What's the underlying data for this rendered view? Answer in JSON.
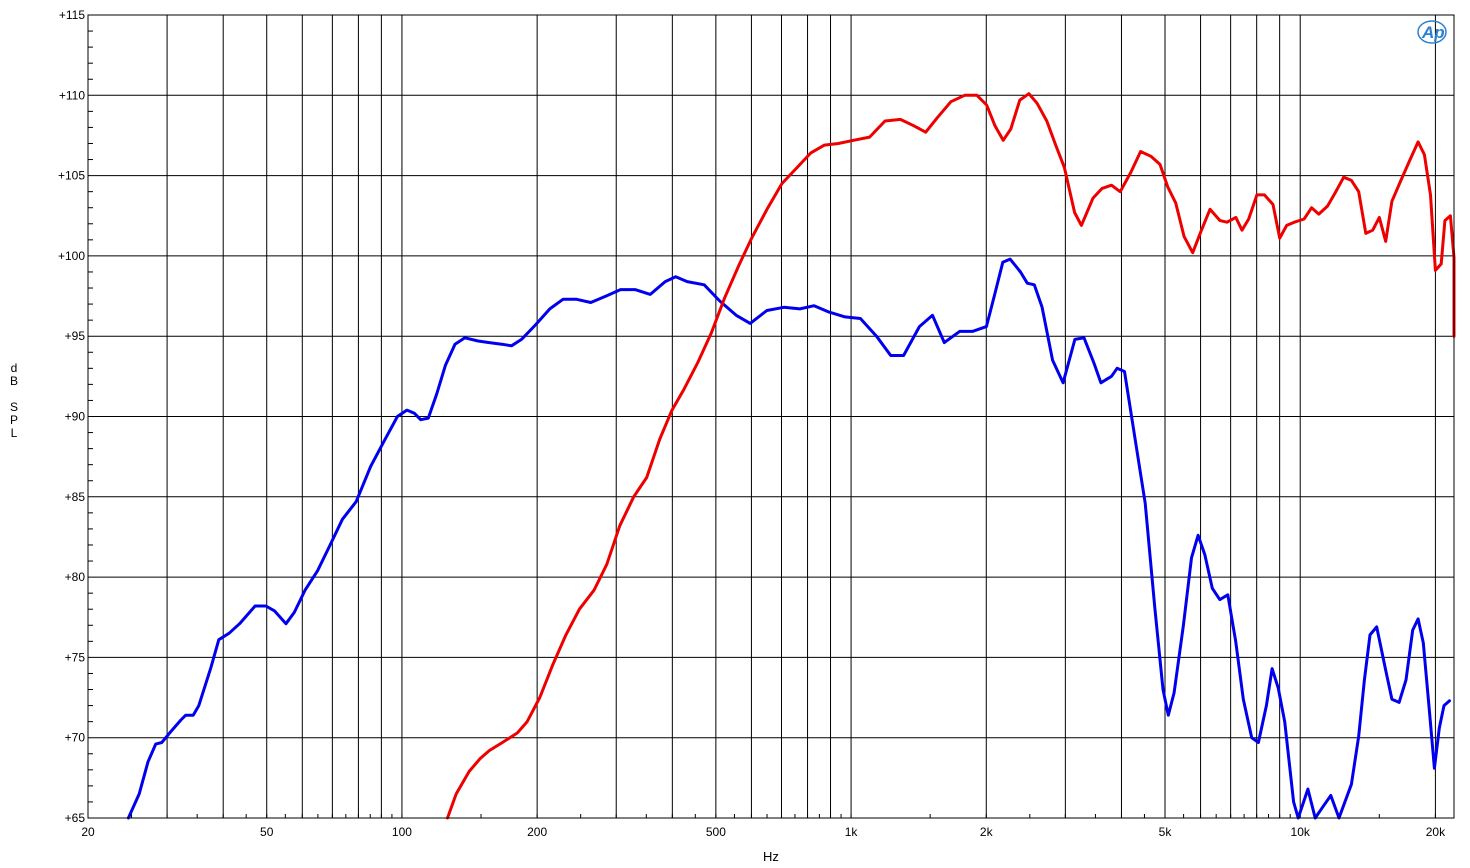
{
  "chart_data": {
    "type": "line",
    "xlabel": "Hz",
    "ylabel": "dB SPL",
    "x_scale": "log",
    "xlim": [
      20,
      22000
    ],
    "ylim": [
      65,
      115
    ],
    "grid": true,
    "logo": "Ap",
    "x_ticks": [
      {
        "value": 20,
        "label": "20"
      },
      {
        "value": 50,
        "label": "50"
      },
      {
        "value": 100,
        "label": "100"
      },
      {
        "value": 200,
        "label": "200"
      },
      {
        "value": 500,
        "label": "500"
      },
      {
        "value": 1000,
        "label": "1k"
      },
      {
        "value": 2000,
        "label": "2k"
      },
      {
        "value": 5000,
        "label": "5k"
      },
      {
        "value": 10000,
        "label": "10k"
      },
      {
        "value": 20000,
        "label": "20k"
      }
    ],
    "y_ticks": [
      {
        "value": 115,
        "label": "+115"
      },
      {
        "value": 110,
        "label": "+110"
      },
      {
        "value": 105,
        "label": "+105"
      },
      {
        "value": 100,
        "label": "+100"
      },
      {
        "value": 95,
        "label": "+95"
      },
      {
        "value": 90,
        "label": "+90"
      },
      {
        "value": 85,
        "label": "+85"
      },
      {
        "value": 80,
        "label": "+80"
      },
      {
        "value": 75,
        "label": "+75"
      },
      {
        "value": 70,
        "label": "+70"
      },
      {
        "value": 65,
        "label": "+65"
      }
    ],
    "series": [
      {
        "color": "#0000ee",
        "points": [
          [
            24.6,
            65.0
          ],
          [
            26.0,
            66.5
          ],
          [
            27.2,
            68.5
          ],
          [
            28.3,
            69.6
          ],
          [
            29.2,
            69.7
          ],
          [
            30.4,
            70.3
          ],
          [
            32.2,
            71.1
          ],
          [
            33.0,
            71.4
          ],
          [
            34.3,
            71.4
          ],
          [
            35.3,
            72.0
          ],
          [
            37.5,
            74.3
          ],
          [
            39.1,
            76.1
          ],
          [
            41.2,
            76.5
          ],
          [
            43.5,
            77.1
          ],
          [
            47.1,
            78.2
          ],
          [
            49.8,
            78.2
          ],
          [
            52.0,
            77.9
          ],
          [
            55.2,
            77.1
          ],
          [
            57.6,
            77.8
          ],
          [
            60.9,
            79.2
          ],
          [
            64.9,
            80.4
          ],
          [
            69.2,
            82.0
          ],
          [
            73.7,
            83.6
          ],
          [
            79.1,
            84.7
          ],
          [
            85.2,
            86.9
          ],
          [
            91.4,
            88.5
          ],
          [
            97.7,
            90.0
          ],
          [
            102.6,
            90.4
          ],
          [
            106.6,
            90.2
          ],
          [
            110.1,
            89.8
          ],
          [
            114.5,
            89.9
          ],
          [
            119.5,
            91.4
          ],
          [
            125.0,
            93.2
          ],
          [
            131.3,
            94.5
          ],
          [
            138.1,
            94.9
          ],
          [
            147.8,
            94.7
          ],
          [
            156.5,
            94.6
          ],
          [
            166.8,
            94.5
          ],
          [
            175.4,
            94.4
          ],
          [
            184.6,
            94.8
          ],
          [
            198.2,
            95.7
          ],
          [
            213.4,
            96.7
          ],
          [
            228.4,
            97.3
          ],
          [
            244.9,
            97.3
          ],
          [
            263.3,
            97.1
          ],
          [
            284.9,
            97.5
          ],
          [
            306.6,
            97.9
          ],
          [
            330.5,
            97.9
          ],
          [
            357.3,
            97.6
          ],
          [
            385.7,
            98.4
          ],
          [
            406.9,
            98.7
          ],
          [
            431.7,
            98.4
          ],
          [
            470.9,
            98.2
          ],
          [
            509.6,
            97.2
          ],
          [
            555.0,
            96.3
          ],
          [
            596.1,
            95.8
          ],
          [
            649.5,
            96.6
          ],
          [
            708.7,
            96.8
          ],
          [
            769.2,
            96.7
          ],
          [
            827.2,
            96.9
          ],
          [
            893.5,
            96.5
          ],
          [
            969.5,
            96.2
          ],
          [
            1048.8,
            96.1
          ],
          [
            1139.3,
            95.0
          ],
          [
            1225.2,
            93.8
          ],
          [
            1309.3,
            93.8
          ],
          [
            1419.6,
            95.6
          ],
          [
            1518.5,
            96.3
          ],
          [
            1612.9,
            94.6
          ],
          [
            1744.7,
            95.3
          ],
          [
            1862.9,
            95.3
          ],
          [
            2001.0,
            95.6
          ],
          [
            2084.0,
            97.5
          ],
          [
            2176.7,
            99.6
          ],
          [
            2259.7,
            99.8
          ],
          [
            2383.9,
            99.0
          ],
          [
            2468.5,
            98.3
          ],
          [
            2559.0,
            98.2
          ],
          [
            2662.8,
            96.8
          ],
          [
            2810.3,
            93.5
          ],
          [
            2965.0,
            92.1
          ],
          [
            3150.0,
            94.8
          ],
          [
            3300.0,
            94.9
          ],
          [
            3476.0,
            93.3
          ],
          [
            3600.0,
            92.1
          ],
          [
            3801.0,
            92.5
          ],
          [
            3912.0,
            93.0
          ],
          [
            4062.0,
            92.8
          ],
          [
            4300.0,
            88.4
          ],
          [
            4518.0,
            84.6
          ],
          [
            4745.0,
            78.1
          ],
          [
            4949.0,
            73.0
          ],
          [
            5085.0,
            71.4
          ],
          [
            5240.0,
            72.8
          ],
          [
            5495.0,
            77.0
          ],
          [
            5727.0,
            81.2
          ],
          [
            5926.0,
            82.6
          ],
          [
            6133.0,
            81.4
          ],
          [
            6372.0,
            79.3
          ],
          [
            6621.0,
            78.6
          ],
          [
            6899.0,
            78.9
          ],
          [
            7184.0,
            76.0
          ],
          [
            7468.0,
            72.4
          ],
          [
            7798.0,
            70.0
          ],
          [
            8070.0,
            69.7
          ],
          [
            8409.0,
            72.0
          ],
          [
            8659.0,
            74.3
          ],
          [
            8935.0,
            73.1
          ],
          [
            9238.0,
            71.0
          ],
          [
            9665.0,
            66.0
          ],
          [
            9900.0,
            65.0
          ],
          [
            10400.0,
            66.8
          ],
          [
            10800.0,
            65.0
          ],
          [
            11300.0,
            65.8
          ],
          [
            11700.0,
            66.4
          ],
          [
            12200.0,
            65.0
          ],
          [
            13000.0,
            67.1
          ],
          [
            13500.0,
            70.1
          ],
          [
            13900.0,
            73.6
          ],
          [
            14300.0,
            76.4
          ],
          [
            14800.0,
            76.9
          ],
          [
            15500.0,
            74.2
          ],
          [
            16000.0,
            72.4
          ],
          [
            16600.0,
            72.2
          ],
          [
            17200.0,
            73.6
          ],
          [
            17800.0,
            76.7
          ],
          [
            18300.0,
            77.4
          ],
          [
            18800.0,
            75.9
          ],
          [
            19400.0,
            71.6
          ],
          [
            19900.0,
            68.1
          ],
          [
            20400.0,
            70.6
          ],
          [
            20900.0,
            72.0
          ],
          [
            21500.0,
            72.3
          ]
        ]
      },
      {
        "color": "#ee0000",
        "points": [
          [
            126.3,
            65.0
          ],
          [
            132.1,
            66.5
          ],
          [
            141.2,
            67.9
          ],
          [
            149.3,
            68.7
          ],
          [
            156.6,
            69.2
          ],
          [
            167.4,
            69.7
          ],
          [
            180.8,
            70.3
          ],
          [
            190.1,
            71.0
          ],
          [
            202.7,
            72.5
          ],
          [
            216.4,
            74.5
          ],
          [
            231.8,
            76.4
          ],
          [
            248.4,
            78.0
          ],
          [
            268.0,
            79.2
          ],
          [
            285.9,
            80.8
          ],
          [
            305.6,
            83.2
          ],
          [
            328.1,
            85.0
          ],
          [
            350.7,
            86.2
          ],
          [
            375.1,
            88.6
          ],
          [
            399.4,
            90.4
          ],
          [
            424.6,
            91.7
          ],
          [
            456.4,
            93.4
          ],
          [
            488.4,
            95.2
          ],
          [
            523.2,
            97.4
          ],
          [
            562.4,
            99.4
          ],
          [
            600.6,
            101.1
          ],
          [
            649.7,
            102.9
          ],
          [
            701.5,
            104.5
          ],
          [
            758.0,
            105.5
          ],
          [
            812.8,
            106.4
          ],
          [
            872.0,
            106.9
          ],
          [
            936.7,
            107.0
          ],
          [
            1012.6,
            107.2
          ],
          [
            1099.5,
            107.4
          ],
          [
            1190.2,
            108.4
          ],
          [
            1287.5,
            108.5
          ],
          [
            1380.0,
            108.1
          ],
          [
            1466.0,
            107.7
          ],
          [
            1555.0,
            108.6
          ],
          [
            1668.0,
            109.6
          ],
          [
            1791.0,
            110.0
          ],
          [
            1906.0,
            110.0
          ],
          [
            2003.0,
            109.4
          ],
          [
            2091.0,
            108.1
          ],
          [
            2181.0,
            107.2
          ],
          [
            2268.0,
            107.9
          ],
          [
            2375.0,
            109.7
          ],
          [
            2488.0,
            110.1
          ],
          [
            2596.0,
            109.5
          ],
          [
            2727.0,
            108.4
          ],
          [
            2855.0,
            106.9
          ],
          [
            2986.0,
            105.5
          ],
          [
            3145.0,
            102.7
          ],
          [
            3257.0,
            101.9
          ],
          [
            3456.0,
            103.6
          ],
          [
            3622.0,
            104.2
          ],
          [
            3801.0,
            104.4
          ],
          [
            3973.0,
            104.0
          ],
          [
            4196.0,
            105.2
          ],
          [
            4412.0,
            106.5
          ],
          [
            4651.0,
            106.2
          ],
          [
            4873.0,
            105.7
          ],
          [
            5070.0,
            104.3
          ],
          [
            5283.0,
            103.3
          ],
          [
            5513.0,
            101.2
          ],
          [
            5763.0,
            100.2
          ],
          [
            6007.0,
            101.5
          ],
          [
            6298.0,
            102.9
          ],
          [
            6630.0,
            102.2
          ],
          [
            6870.0,
            102.1
          ],
          [
            7189.0,
            102.4
          ],
          [
            7420.0,
            101.6
          ],
          [
            7681.0,
            102.3
          ],
          [
            8010.0,
            103.8
          ],
          [
            8325.0,
            103.8
          ],
          [
            8700.0,
            103.2
          ],
          [
            9000.0,
            101.1
          ],
          [
            9330.0,
            101.9
          ],
          [
            9700.0,
            102.1
          ],
          [
            10200.0,
            102.3
          ],
          [
            10600.0,
            103.0
          ],
          [
            11000.0,
            102.6
          ],
          [
            11500.0,
            103.1
          ],
          [
            12000.0,
            104.0
          ],
          [
            12500.0,
            104.9
          ],
          [
            13000.0,
            104.7
          ],
          [
            13500.0,
            104.0
          ],
          [
            14000.0,
            101.4
          ],
          [
            14500.0,
            101.6
          ],
          [
            15000.0,
            102.4
          ],
          [
            15500.0,
            100.9
          ],
          [
            16000.0,
            103.4
          ],
          [
            16700.0,
            104.6
          ],
          [
            17500.0,
            105.9
          ],
          [
            18300.0,
            107.1
          ],
          [
            18900.0,
            106.3
          ],
          [
            19500.0,
            103.8
          ],
          [
            20000.0,
            99.1
          ],
          [
            20600.0,
            99.5
          ],
          [
            21000.0,
            102.2
          ],
          [
            21600.0,
            102.5
          ],
          [
            22000.0,
            99.9
          ],
          [
            22400.0,
            96.5
          ],
          [
            22800.0,
            95.0
          ],
          [
            23300.0,
            99.5
          ]
        ]
      }
    ]
  }
}
